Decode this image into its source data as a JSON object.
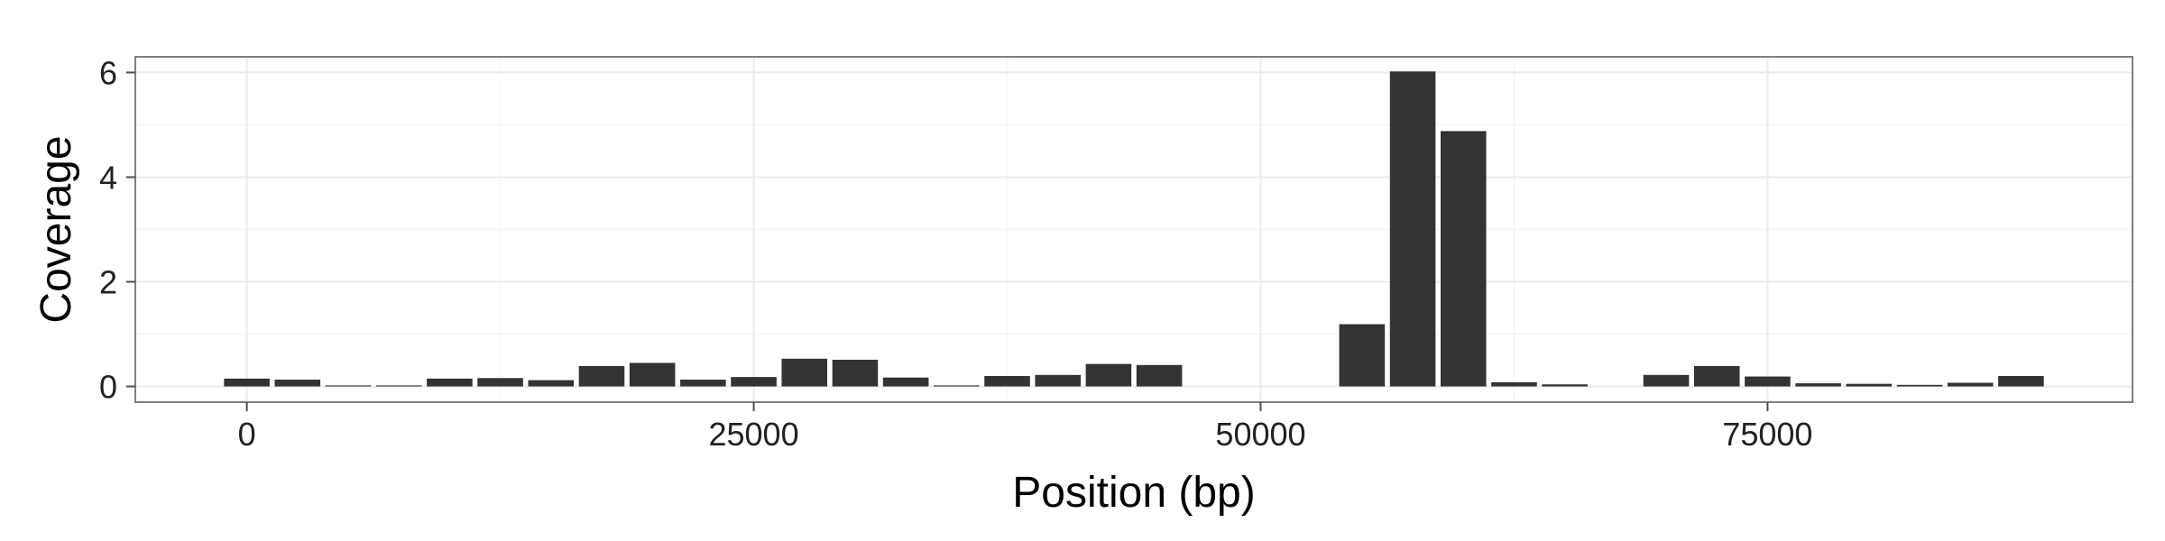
{
  "chart_data": {
    "type": "bar",
    "title": "",
    "xlabel": "Position (bp)",
    "ylabel": "Coverage",
    "xlim": [
      -5500,
      93000
    ],
    "ylim": [
      -0.3,
      6.3
    ],
    "xticks": [
      0,
      25000,
      50000,
      75000
    ],
    "xtick_labels": [
      "0",
      "25000",
      "50000",
      "75000"
    ],
    "yticks": [
      0,
      2,
      4,
      6
    ],
    "ytick_labels": [
      "0",
      "2",
      "4",
      "6"
    ],
    "grid": true,
    "legend": "none",
    "bar_width": 2250,
    "colors": {
      "bar": "#333333",
      "panel_border": "#7f7f7f",
      "grid_major": "#ebebeb",
      "grid_minor": "#f5f5f5",
      "tick": "#4d4d4d"
    },
    "x": [
      0,
      2500,
      5000,
      7500,
      10000,
      12500,
      15000,
      17500,
      20000,
      22500,
      25000,
      27500,
      30000,
      32500,
      35000,
      37500,
      40000,
      42500,
      45000,
      47500,
      50000,
      52500,
      55000,
      57500,
      60000,
      62500,
      65000,
      67500,
      70000,
      72500,
      75000,
      77500,
      80000,
      82500,
      85000,
      87500
    ],
    "values": [
      0.15,
      0.13,
      0.02,
      0.02,
      0.15,
      0.16,
      0.12,
      0.39,
      0.45,
      0.13,
      0.18,
      0.53,
      0.51,
      0.17,
      0.02,
      0.2,
      0.22,
      0.43,
      0.41,
      0.0,
      0.0,
      0.0,
      1.19,
      6.02,
      4.88,
      0.08,
      0.04,
      0.0,
      0.22,
      0.39,
      0.19,
      0.06,
      0.05,
      0.03,
      0.07,
      0.2
    ]
  }
}
